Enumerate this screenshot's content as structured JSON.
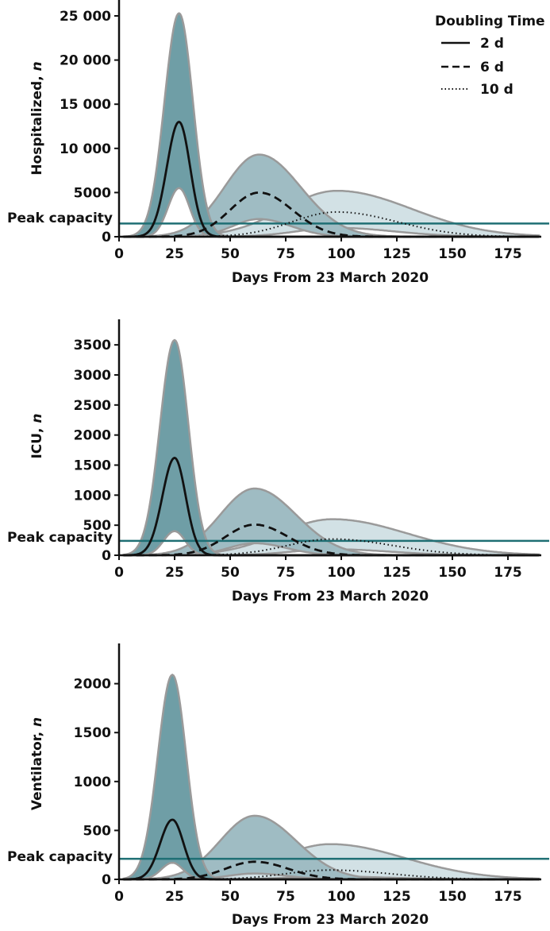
{
  "legend": {
    "title": "Doubling Time",
    "entries": [
      {
        "label": "2 d",
        "style": "solid"
      },
      {
        "label": "6 d",
        "style": "dashed"
      },
      {
        "label": "10 d",
        "style": "dotted"
      }
    ],
    "placement": "top-right"
  },
  "colors": {
    "band_2d": "#6f9ea6",
    "band_6d": "#9fbcc3",
    "band_10d": "#d2e1e5",
    "band_outline": "#9a9a9a",
    "capacity_line": "#1f6f74",
    "median_line": "#111111"
  },
  "chart_data": [
    {
      "type": "area",
      "xlabel": "Days From 23 March 2020",
      "ylabel": "Hospitalized, n",
      "xlim": [
        0,
        190
      ],
      "ylim": [
        0,
        25000
      ],
      "xticks": [
        0,
        25,
        50,
        75,
        100,
        125,
        150,
        175
      ],
      "yticks": [
        0,
        5000,
        10000,
        15000,
        20000,
        25000
      ],
      "ytick_labels": [
        "0",
        "5000",
        "10 000",
        "15 000",
        "20 000",
        "25 000"
      ],
      "peak_capacity": {
        "label": "Peak capacity",
        "value": 1500
      },
      "series": [
        {
          "legend": "2 d",
          "peak_day": 27,
          "median_peak": 13000,
          "upper_peak": 25300,
          "lower_peak": 5500
        },
        {
          "legend": "6 d",
          "peak_day": 63,
          "median_peak": 5000,
          "upper_peak": 9300,
          "lower_peak": 2000
        },
        {
          "legend": "10 d",
          "peak_day": 98,
          "median_peak": 2800,
          "upper_peak": 5200,
          "lower_peak": 1000
        }
      ]
    },
    {
      "type": "area",
      "xlabel": "Days From 23 March 2020",
      "ylabel": "ICU, n",
      "xlim": [
        0,
        190
      ],
      "ylim": [
        0,
        3700
      ],
      "xticks": [
        0,
        25,
        50,
        75,
        100,
        125,
        150,
        175
      ],
      "yticks": [
        0,
        500,
        1000,
        1500,
        2000,
        2500,
        3000,
        3500
      ],
      "ytick_labels": [
        "0",
        "500",
        "1000",
        "1500",
        "2000",
        "2500",
        "3000",
        "3500"
      ],
      "peak_capacity": {
        "label": "Peak capacity",
        "value": 240
      },
      "series": [
        {
          "legend": "2 d",
          "peak_day": 25,
          "median_peak": 1620,
          "upper_peak": 3580,
          "lower_peak": 400
        },
        {
          "legend": "6 d",
          "peak_day": 61,
          "median_peak": 510,
          "upper_peak": 1110,
          "lower_peak": 200
        },
        {
          "legend": "10 d",
          "peak_day": 96,
          "median_peak": 270,
          "upper_peak": 600,
          "lower_peak": 100
        }
      ]
    },
    {
      "type": "area",
      "xlabel": "Days From 23 March 2020",
      "ylabel": "Ventilator, n",
      "xlim": [
        0,
        190
      ],
      "ylim": [
        0,
        2200
      ],
      "xticks": [
        0,
        25,
        50,
        75,
        100,
        125,
        150,
        175
      ],
      "yticks": [
        0,
        500,
        1000,
        1500,
        2000
      ],
      "ytick_labels": [
        "0",
        "500",
        "1000",
        "1500",
        "2000"
      ],
      "peak_capacity": {
        "label": "Peak capacity",
        "value": 210
      },
      "series": [
        {
          "legend": "2 d",
          "peak_day": 24,
          "median_peak": 610,
          "upper_peak": 2090,
          "lower_peak": 170
        },
        {
          "legend": "6 d",
          "peak_day": 61,
          "median_peak": 180,
          "upper_peak": 650,
          "lower_peak": 60
        },
        {
          "legend": "10 d",
          "peak_day": 95,
          "median_peak": 95,
          "upper_peak": 360,
          "lower_peak": 30
        }
      ]
    }
  ]
}
